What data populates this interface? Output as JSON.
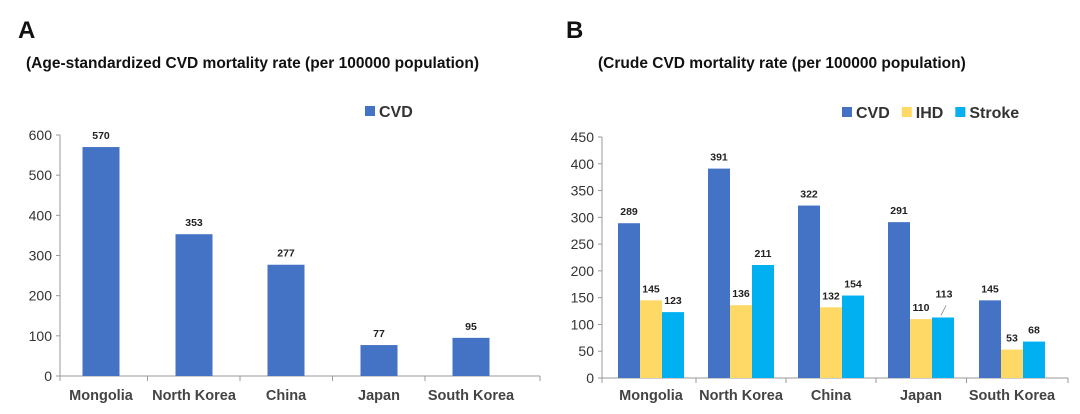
{
  "colors": {
    "cvd": "#4472C4",
    "ihd": "#FFD966",
    "stroke": "#00B0F0"
  },
  "chart_data": [
    {
      "panel": "A",
      "type": "bar",
      "title": "(Age-standardized CVD mortality rate (per 100000 population)",
      "xlabel": "",
      "ylabel": "",
      "categories": [
        "Mongolia",
        "North Korea",
        "China",
        "Japan",
        "South Korea"
      ],
      "series": [
        {
          "name": "CVD",
          "color": "#4472C4",
          "values": [
            570,
            353,
            277,
            77,
            95
          ]
        }
      ],
      "ylim": [
        0,
        600
      ],
      "yticks": [
        0,
        100,
        200,
        300,
        400,
        500,
        600
      ],
      "grid": false,
      "legend": "top-right"
    },
    {
      "panel": "B",
      "type": "bar",
      "title": "(Crude CVD mortality rate (per 100000 population)",
      "xlabel": "",
      "ylabel": "",
      "categories": [
        "Mongolia",
        "North Korea",
        "China",
        "Japan",
        "South Korea"
      ],
      "series": [
        {
          "name": "CVD",
          "color": "#4472C4",
          "values": [
            289,
            391,
            322,
            291,
            145
          ]
        },
        {
          "name": "IHD",
          "color": "#FFD966",
          "values": [
            145,
            136,
            132,
            110,
            53
          ]
        },
        {
          "name": "Stroke",
          "color": "#00B0F0",
          "values": [
            123,
            211,
            154,
            113,
            68
          ]
        }
      ],
      "ylim": [
        0,
        450
      ],
      "yticks": [
        0,
        50,
        100,
        150,
        200,
        250,
        300,
        350,
        400,
        450
      ],
      "grid": false,
      "legend": "top-right"
    }
  ]
}
